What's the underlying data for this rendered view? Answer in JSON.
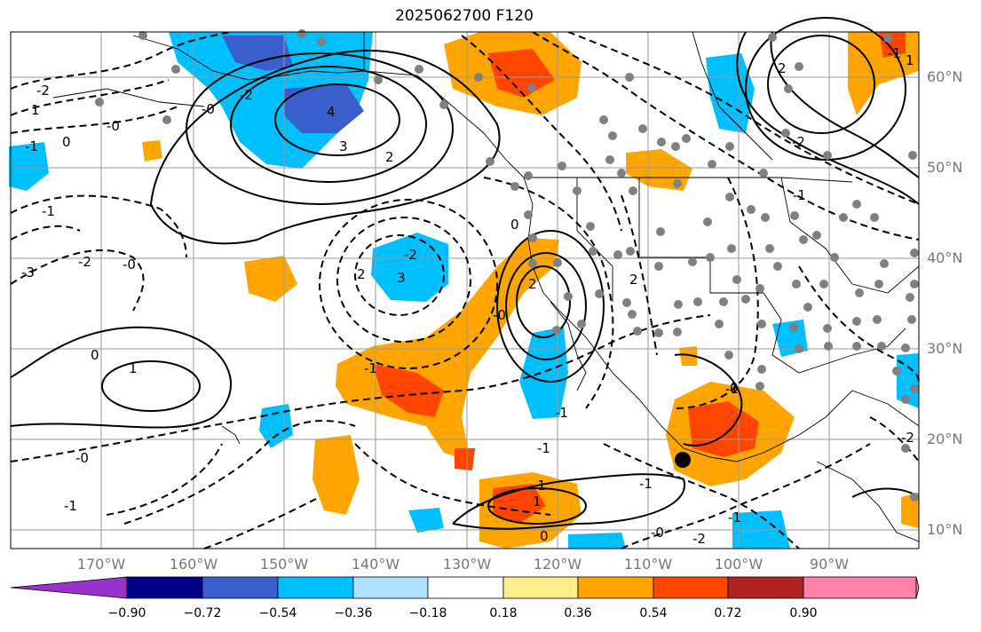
{
  "title": "2025062700 F120",
  "lat_labels": [
    "60°N",
    "50°N",
    "40°N",
    "30°N",
    "20°N",
    "10°N"
  ],
  "lon_labels": [
    "170°W",
    "160°W",
    "150°W",
    "140°W",
    "130°W",
    "120°W",
    "110°W",
    "100°W",
    "90°W"
  ],
  "colorbar": {
    "ticks": [
      "−0.90",
      "−0.72",
      "−0.54",
      "−0.36",
      "−0.18",
      "0.18",
      "0.36",
      "0.54",
      "0.72",
      "0.90"
    ],
    "colors": [
      "#9932cc",
      "#00008b",
      "#3a5fcd",
      "#00bfff",
      "#b0e2ff",
      "#ffffff",
      "#ffec8b",
      "#ffa500",
      "#ff4500",
      "#b22222",
      "#ff82ab"
    ]
  },
  "contour_labels": [
    "2",
    "1",
    "0",
    "4",
    "3",
    "2",
    "-1",
    "-2",
    "-0",
    "-2",
    "-1",
    "-0",
    "3",
    "-2",
    "-3",
    "2",
    "-1",
    "2",
    "-0",
    "-1",
    "1",
    "0",
    "-1",
    "-1",
    "-2",
    "-1",
    "-2",
    "2",
    "-1",
    "-0",
    "-0",
    "-1",
    "-2",
    "1",
    "-0",
    "0",
    "-1",
    "0",
    "-2",
    "1",
    "-1",
    "0",
    "-1"
  ],
  "markers": {
    "center_dot_color": "#000000",
    "station_dot_color": "#808080"
  }
}
